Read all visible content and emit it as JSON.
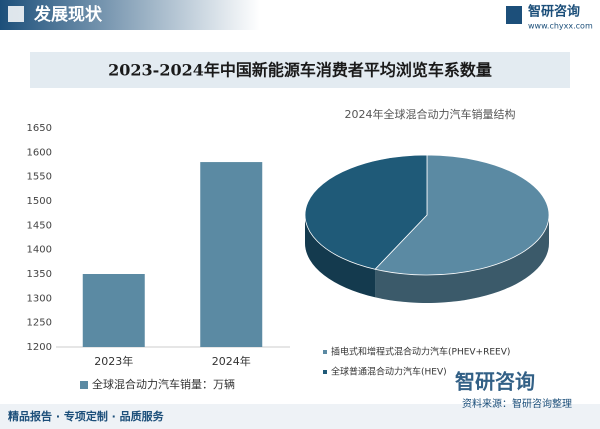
{
  "header": {
    "title": "发展现状",
    "brand": "智研咨询",
    "url": "www.chyxx.com"
  },
  "banner_title": "2023-2024年中国新能源车消费者平均浏览车系数量",
  "chart_data": [
    {
      "type": "bar",
      "categories": [
        "2023年",
        "2024年"
      ],
      "series": [
        {
          "name": "全球混合动力汽车销量：万辆",
          "color": "#5b8aa3",
          "values": [
            1350,
            1580
          ]
        }
      ],
      "ylim": [
        1200,
        1650
      ],
      "yticks": [
        1200,
        1250,
        1300,
        1350,
        1400,
        1450,
        1500,
        1550,
        1600,
        1650
      ]
    },
    {
      "type": "pie",
      "title": "2024年全球混合动力汽车销量结构",
      "categories": [
        "插电式和增程式混合动力汽车(PHEV+REEV)",
        "全球普通混合动力汽车(HEV)"
      ],
      "values": [
        57,
        43
      ],
      "colors": [
        "#5b8aa3",
        "#1f5a78"
      ]
    }
  ],
  "footer": {
    "slogan": "精品报告 · 专项定制 · 品质服务",
    "source": "资料来源：智研咨询整理",
    "brand": "智研咨询"
  }
}
